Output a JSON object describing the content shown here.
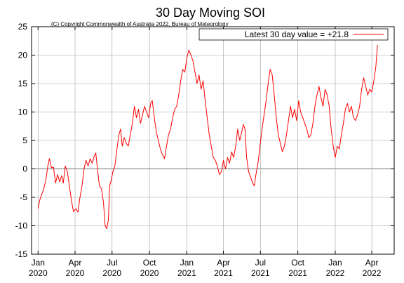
{
  "chart_data": {
    "type": "line",
    "title": "30 Day Moving SOI",
    "subtitle": "(C) Copyright Commonwealth of Australia 2022, Bureau of Meteorology",
    "xlabel": "",
    "ylabel": "",
    "ylim": [
      -15,
      25
    ],
    "yticks": [
      25,
      20,
      15,
      10,
      5,
      0,
      -5,
      -10,
      -15
    ],
    "xlim": [
      "2019-12-16",
      "2022-05-26"
    ],
    "xticks": [
      {
        "date": "2020-01-01",
        "label1": "Jan",
        "label2": "2020"
      },
      {
        "date": "2020-04-01",
        "label1": "Apr",
        "label2": "2020"
      },
      {
        "date": "2020-07-01",
        "label1": "Jul",
        "label2": "2020"
      },
      {
        "date": "2020-10-01",
        "label1": "Oct",
        "label2": "2020"
      },
      {
        "date": "2021-01-01",
        "label1": "Jan",
        "label2": "2021"
      },
      {
        "date": "2021-04-01",
        "label1": "Apr",
        "label2": "2021"
      },
      {
        "date": "2021-07-01",
        "label1": "Jul",
        "label2": "2021"
      },
      {
        "date": "2021-10-01",
        "label1": "Oct",
        "label2": "2021"
      },
      {
        "date": "2022-01-01",
        "label1": "Jan",
        "label2": "2022"
      },
      {
        "date": "2022-04-01",
        "label1": "Apr",
        "label2": "2022"
      }
    ],
    "grid": true,
    "legend_position": "top-right",
    "series": [
      {
        "name": "Latest 30 day value = +21.8",
        "color": "#ff0000",
        "points": [
          [
            "2020-01-01",
            -7.0
          ],
          [
            "2020-01-05",
            -5.5
          ],
          [
            "2020-01-10",
            -4.5
          ],
          [
            "2020-01-15",
            -3.5
          ],
          [
            "2020-01-20",
            -2.0
          ],
          [
            "2020-01-25",
            0.5
          ],
          [
            "2020-01-29",
            1.8
          ],
          [
            "2020-02-03",
            0.2
          ],
          [
            "2020-02-08",
            0.3
          ],
          [
            "2020-02-13",
            -2.5
          ],
          [
            "2020-02-18",
            -1.0
          ],
          [
            "2020-02-23",
            -2.3
          ],
          [
            "2020-02-28",
            -1.2
          ],
          [
            "2020-03-03",
            -2.5
          ],
          [
            "2020-03-08",
            0.5
          ],
          [
            "2020-03-13",
            -0.5
          ],
          [
            "2020-03-18",
            -3.0
          ],
          [
            "2020-03-23",
            -5.5
          ],
          [
            "2020-03-28",
            -7.5
          ],
          [
            "2020-04-03",
            -7.0
          ],
          [
            "2020-04-08",
            -7.6
          ],
          [
            "2020-04-13",
            -5.0
          ],
          [
            "2020-04-18",
            -3.0
          ],
          [
            "2020-04-23",
            0.0
          ],
          [
            "2020-04-28",
            1.5
          ],
          [
            "2020-05-03",
            0.5
          ],
          [
            "2020-05-08",
            1.8
          ],
          [
            "2020-05-13",
            1.0
          ],
          [
            "2020-05-18",
            2.2
          ],
          [
            "2020-05-22",
            2.8
          ],
          [
            "2020-05-26",
            0.0
          ],
          [
            "2020-05-31",
            -3.0
          ],
          [
            "2020-06-05",
            -3.5
          ],
          [
            "2020-06-10",
            -6.0
          ],
          [
            "2020-06-14",
            -10.0
          ],
          [
            "2020-06-18",
            -10.5
          ],
          [
            "2020-06-22",
            -9.0
          ],
          [
            "2020-06-25",
            -3.0
          ],
          [
            "2020-06-29",
            -2.0
          ],
          [
            "2020-07-03",
            -0.5
          ],
          [
            "2020-07-08",
            0.5
          ],
          [
            "2020-07-13",
            3.5
          ],
          [
            "2020-07-18",
            6.0
          ],
          [
            "2020-07-22",
            7.0
          ],
          [
            "2020-07-26",
            4.0
          ],
          [
            "2020-07-31",
            5.5
          ],
          [
            "2020-08-05",
            4.5
          ],
          [
            "2020-08-10",
            4.0
          ],
          [
            "2020-08-15",
            6.0
          ],
          [
            "2020-08-20",
            8.0
          ],
          [
            "2020-08-25",
            11.0
          ],
          [
            "2020-08-30",
            9.0
          ],
          [
            "2020-09-04",
            10.5
          ],
          [
            "2020-09-09",
            8.0
          ],
          [
            "2020-09-14",
            9.5
          ],
          [
            "2020-09-19",
            11.0
          ],
          [
            "2020-09-24",
            10.0
          ],
          [
            "2020-09-29",
            9.0
          ],
          [
            "2020-10-04",
            11.5
          ],
          [
            "2020-10-08",
            12.0
          ],
          [
            "2020-10-13",
            9.0
          ],
          [
            "2020-10-18",
            6.5
          ],
          [
            "2020-10-23",
            5.0
          ],
          [
            "2020-10-28",
            3.5
          ],
          [
            "2020-11-02",
            2.5
          ],
          [
            "2020-11-07",
            1.8
          ],
          [
            "2020-11-12",
            4.0
          ],
          [
            "2020-11-17",
            6.0
          ],
          [
            "2020-11-22",
            7.0
          ],
          [
            "2020-11-27",
            9.0
          ],
          [
            "2020-12-02",
            10.5
          ],
          [
            "2020-12-07",
            11.0
          ],
          [
            "2020-12-12",
            13.0
          ],
          [
            "2020-12-17",
            15.5
          ],
          [
            "2020-12-22",
            17.5
          ],
          [
            "2020-12-27",
            17.0
          ],
          [
            "2021-01-01",
            19.5
          ],
          [
            "2021-01-06",
            20.9
          ],
          [
            "2021-01-11",
            20.0
          ],
          [
            "2021-01-16",
            19.0
          ],
          [
            "2021-01-21",
            17.0
          ],
          [
            "2021-01-26",
            15.0
          ],
          [
            "2021-01-31",
            16.5
          ],
          [
            "2021-02-05",
            14.0
          ],
          [
            "2021-02-10",
            15.5
          ],
          [
            "2021-02-15",
            12.0
          ],
          [
            "2021-02-20",
            9.0
          ],
          [
            "2021-02-25",
            6.0
          ],
          [
            "2021-03-02",
            4.0
          ],
          [
            "2021-03-07",
            2.0
          ],
          [
            "2021-03-12",
            1.5
          ],
          [
            "2021-03-17",
            0.5
          ],
          [
            "2021-03-22",
            -1.0
          ],
          [
            "2021-03-27",
            -0.5
          ],
          [
            "2021-04-01",
            1.5
          ],
          [
            "2021-04-06",
            0.0
          ],
          [
            "2021-04-11",
            2.0
          ],
          [
            "2021-04-16",
            1.0
          ],
          [
            "2021-04-21",
            3.0
          ],
          [
            "2021-04-26",
            2.0
          ],
          [
            "2021-05-01",
            4.0
          ],
          [
            "2021-05-06",
            7.0
          ],
          [
            "2021-05-11",
            5.0
          ],
          [
            "2021-05-16",
            6.5
          ],
          [
            "2021-05-20",
            7.8
          ],
          [
            "2021-05-24",
            7.0
          ],
          [
            "2021-05-28",
            2.0
          ],
          [
            "2021-06-02",
            -0.5
          ],
          [
            "2021-06-07",
            -1.5
          ],
          [
            "2021-06-12",
            -2.5
          ],
          [
            "2021-06-16",
            -3.0
          ],
          [
            "2021-06-20",
            -1.0
          ],
          [
            "2021-06-25",
            1.0
          ],
          [
            "2021-06-30",
            4.0
          ],
          [
            "2021-07-05",
            7.0
          ],
          [
            "2021-07-10",
            9.5
          ],
          [
            "2021-07-15",
            12.0
          ],
          [
            "2021-07-20",
            15.0
          ],
          [
            "2021-07-25",
            17.5
          ],
          [
            "2021-07-30",
            16.5
          ],
          [
            "2021-08-04",
            13.0
          ],
          [
            "2021-08-09",
            9.0
          ],
          [
            "2021-08-14",
            6.0
          ],
          [
            "2021-08-19",
            4.5
          ],
          [
            "2021-08-24",
            3.0
          ],
          [
            "2021-08-29",
            4.0
          ],
          [
            "2021-09-03",
            6.0
          ],
          [
            "2021-09-08",
            8.5
          ],
          [
            "2021-09-13",
            11.0
          ],
          [
            "2021-09-18",
            9.0
          ],
          [
            "2021-09-23",
            10.5
          ],
          [
            "2021-09-28",
            8.5
          ],
          [
            "2021-10-03",
            12.0
          ],
          [
            "2021-10-08",
            10.0
          ],
          [
            "2021-10-13",
            9.0
          ],
          [
            "2021-10-18",
            8.0
          ],
          [
            "2021-10-23",
            7.0
          ],
          [
            "2021-10-28",
            5.5
          ],
          [
            "2021-11-02",
            6.0
          ],
          [
            "2021-11-07",
            8.0
          ],
          [
            "2021-11-12",
            11.0
          ],
          [
            "2021-11-17",
            13.0
          ],
          [
            "2021-11-22",
            14.5
          ],
          [
            "2021-11-27",
            12.5
          ],
          [
            "2021-12-02",
            11.0
          ],
          [
            "2021-12-07",
            14.0
          ],
          [
            "2021-12-12",
            13.0
          ],
          [
            "2021-12-17",
            11.0
          ],
          [
            "2021-12-22",
            7.0
          ],
          [
            "2021-12-27",
            4.0
          ],
          [
            "2022-01-01",
            2.0
          ],
          [
            "2022-01-06",
            4.0
          ],
          [
            "2022-01-11",
            3.5
          ],
          [
            "2022-01-16",
            6.0
          ],
          [
            "2022-01-21",
            8.0
          ],
          [
            "2022-01-26",
            10.5
          ],
          [
            "2022-01-31",
            11.5
          ],
          [
            "2022-02-05",
            10.0
          ],
          [
            "2022-02-10",
            11.0
          ],
          [
            "2022-02-15",
            9.0
          ],
          [
            "2022-02-20",
            8.5
          ],
          [
            "2022-02-25",
            9.5
          ],
          [
            "2022-03-02",
            11.0
          ],
          [
            "2022-03-07",
            14.0
          ],
          [
            "2022-03-12",
            16.0
          ],
          [
            "2022-03-17",
            14.5
          ],
          [
            "2022-03-22",
            13.0
          ],
          [
            "2022-03-27",
            14.0
          ],
          [
            "2022-04-01",
            13.5
          ],
          [
            "2022-04-06",
            15.5
          ],
          [
            "2022-04-11",
            18.0
          ],
          [
            "2022-04-15",
            21.8
          ]
        ]
      }
    ]
  }
}
